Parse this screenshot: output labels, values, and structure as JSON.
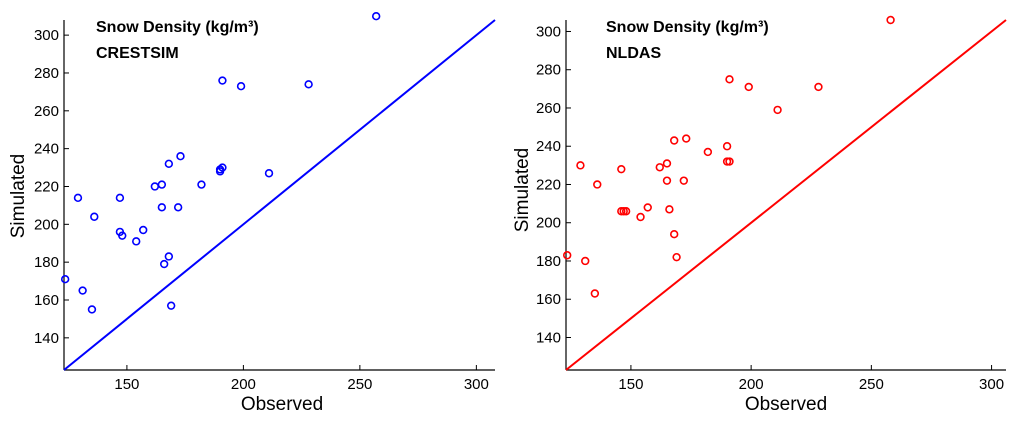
{
  "chart_data": [
    {
      "type": "scatter",
      "title_line1": "Snow Density (kg/m³)",
      "title_line2": "CRESTSIM",
      "xlabel": "Observed",
      "ylabel": "Simulated",
      "xlim": [
        123,
        308
      ],
      "ylim": [
        123,
        308
      ],
      "xticks": [
        150,
        200,
        250,
        300
      ],
      "yticks": [
        140,
        160,
        180,
        200,
        220,
        240,
        260,
        280,
        300
      ],
      "color": "#0000ff",
      "reference_line": "1:1",
      "grid": false,
      "points": [
        {
          "x": 123.5,
          "y": 171
        },
        {
          "x": 129,
          "y": 214
        },
        {
          "x": 131,
          "y": 165
        },
        {
          "x": 135,
          "y": 155
        },
        {
          "x": 136,
          "y": 204
        },
        {
          "x": 147,
          "y": 214
        },
        {
          "x": 147,
          "y": 196
        },
        {
          "x": 148,
          "y": 194
        },
        {
          "x": 154,
          "y": 191
        },
        {
          "x": 157,
          "y": 197
        },
        {
          "x": 162,
          "y": 220
        },
        {
          "x": 165,
          "y": 221
        },
        {
          "x": 165,
          "y": 209
        },
        {
          "x": 166,
          "y": 179
        },
        {
          "x": 168,
          "y": 183
        },
        {
          "x": 168,
          "y": 232
        },
        {
          "x": 169,
          "y": 157
        },
        {
          "x": 172,
          "y": 209
        },
        {
          "x": 173,
          "y": 236
        },
        {
          "x": 182,
          "y": 221
        },
        {
          "x": 190,
          "y": 229
        },
        {
          "x": 190,
          "y": 228
        },
        {
          "x": 191,
          "y": 230
        },
        {
          "x": 191,
          "y": 276
        },
        {
          "x": 199,
          "y": 273
        },
        {
          "x": 211,
          "y": 227
        },
        {
          "x": 228,
          "y": 274
        },
        {
          "x": 257,
          "y": 310
        }
      ]
    },
    {
      "type": "scatter",
      "title_line1": "Snow Density (kg/m³)",
      "title_line2": "NLDAS",
      "xlabel": "Observed",
      "ylabel": "Simulated",
      "xlim": [
        123,
        306
      ],
      "ylim": [
        123,
        306
      ],
      "xticks": [
        150,
        200,
        250,
        300
      ],
      "yticks": [
        140,
        160,
        180,
        200,
        220,
        240,
        260,
        280,
        300
      ],
      "color": "#ff0000",
      "reference_line": "1:1",
      "grid": false,
      "points": [
        {
          "x": 123.5,
          "y": 183
        },
        {
          "x": 129,
          "y": 230
        },
        {
          "x": 131,
          "y": 180
        },
        {
          "x": 135,
          "y": 163
        },
        {
          "x": 136,
          "y": 220
        },
        {
          "x": 146,
          "y": 228
        },
        {
          "x": 146,
          "y": 206
        },
        {
          "x": 147,
          "y": 206
        },
        {
          "x": 148,
          "y": 206
        },
        {
          "x": 154,
          "y": 203
        },
        {
          "x": 157,
          "y": 208
        },
        {
          "x": 162,
          "y": 229
        },
        {
          "x": 165,
          "y": 231
        },
        {
          "x": 165,
          "y": 222
        },
        {
          "x": 166,
          "y": 207
        },
        {
          "x": 168,
          "y": 194
        },
        {
          "x": 168,
          "y": 243
        },
        {
          "x": 169,
          "y": 182
        },
        {
          "x": 172,
          "y": 222
        },
        {
          "x": 173,
          "y": 244
        },
        {
          "x": 182,
          "y": 237
        },
        {
          "x": 190,
          "y": 240
        },
        {
          "x": 190,
          "y": 232
        },
        {
          "x": 191,
          "y": 232
        },
        {
          "x": 191,
          "y": 275
        },
        {
          "x": 199,
          "y": 271
        },
        {
          "x": 211,
          "y": 259
        },
        {
          "x": 228,
          "y": 271
        },
        {
          "x": 258,
          "y": 306
        }
      ]
    }
  ]
}
